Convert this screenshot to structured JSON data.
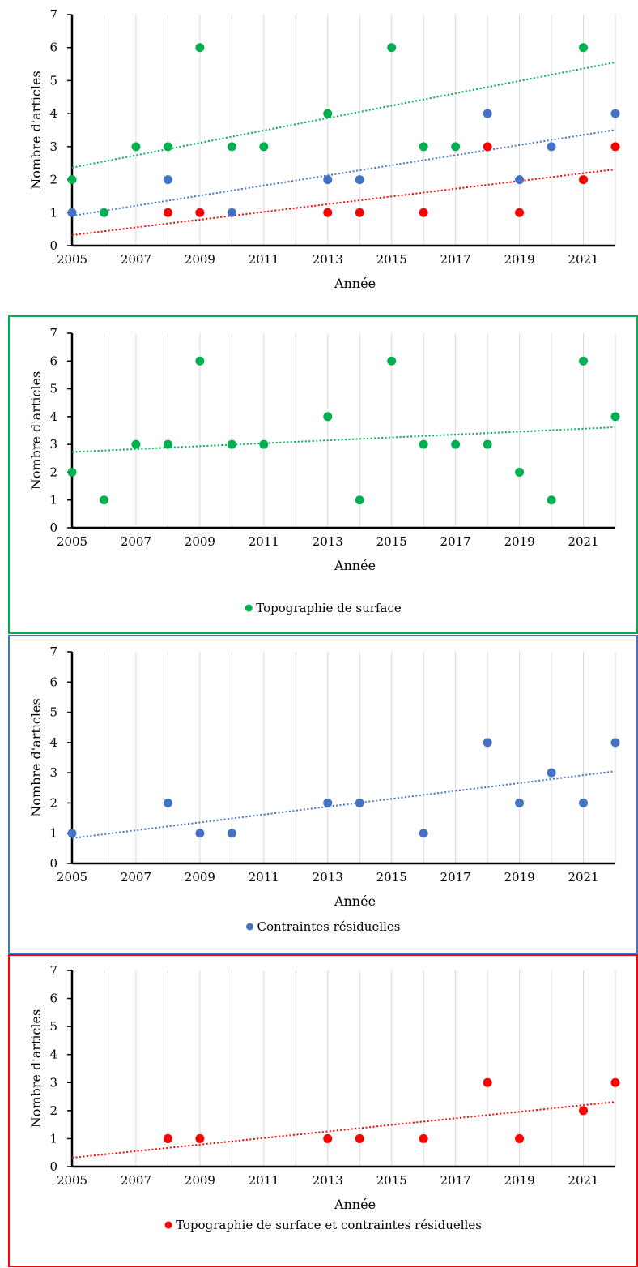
{
  "chart_data": [
    {
      "type": "scatter",
      "xlabel": "Année",
      "ylabel": "Nombre d'articles",
      "xlim": [
        2005,
        2022
      ],
      "ylim": [
        0,
        7
      ],
      "x_ticks": [
        2005,
        2007,
        2009,
        2011,
        2013,
        2015,
        2017,
        2019,
        2021
      ],
      "y_ticks": [
        0,
        1,
        2,
        3,
        4,
        5,
        6,
        7
      ],
      "grid": "vertical",
      "legend": null,
      "trendline": "linear, dotted",
      "series": [
        {
          "color": "#00b050",
          "x": [
            2005,
            2006,
            2007,
            2008,
            2009,
            2010,
            2011,
            2013,
            2015,
            2016,
            2017,
            2021
          ],
          "y": [
            2,
            1,
            3,
            3,
            6,
            3,
            3,
            4,
            6,
            3,
            3,
            6
          ]
        },
        {
          "color": "#4472c4",
          "x": [
            2005,
            2008,
            2010,
            2013,
            2014,
            2018,
            2019,
            2020,
            2022
          ],
          "y": [
            1,
            2,
            1,
            2,
            2,
            4,
            2,
            3,
            4
          ]
        },
        {
          "color": "#ff0000",
          "x": [
            2008,
            2009,
            2013,
            2014,
            2016,
            2018,
            2019,
            2021,
            2022
          ],
          "y": [
            1,
            1,
            1,
            1,
            1,
            3,
            1,
            2,
            3
          ]
        }
      ]
    },
    {
      "type": "scatter",
      "xlabel": "Année",
      "ylabel": "Nombre d'articles",
      "xlim": [
        2005,
        2022
      ],
      "ylim": [
        0,
        7
      ],
      "x_ticks": [
        2005,
        2007,
        2009,
        2011,
        2013,
        2015,
        2017,
        2019,
        2021
      ],
      "y_ticks": [
        0,
        1,
        2,
        3,
        4,
        5,
        6,
        7
      ],
      "grid": "vertical",
      "legend": "bottom",
      "frame_color": "#00b050",
      "trendline": "linear, dotted",
      "series": [
        {
          "name": "Topographie de surface",
          "color": "#00b050",
          "x": [
            2005,
            2006,
            2007,
            2008,
            2009,
            2010,
            2011,
            2013,
            2014,
            2015,
            2016,
            2017,
            2018,
            2019,
            2020,
            2021,
            2022
          ],
          "y": [
            2,
            1,
            3,
            3,
            6,
            3,
            3,
            4,
            1,
            6,
            3,
            3,
            3,
            2,
            1,
            6,
            4
          ]
        }
      ]
    },
    {
      "type": "scatter",
      "xlabel": "Année",
      "ylabel": "Nombre d'articles",
      "xlim": [
        2005,
        2022
      ],
      "ylim": [
        0,
        7
      ],
      "x_ticks": [
        2005,
        2007,
        2009,
        2011,
        2013,
        2015,
        2017,
        2019,
        2021
      ],
      "y_ticks": [
        0,
        1,
        2,
        3,
        4,
        5,
        6,
        7
      ],
      "grid": "vertical",
      "legend": "bottom",
      "frame_color": "#4472c4",
      "trendline": "linear, dotted",
      "series": [
        {
          "name": "Contraintes résiduelles",
          "color": "#4472c4",
          "x": [
            2005,
            2008,
            2009,
            2010,
            2013,
            2014,
            2016,
            2018,
            2019,
            2020,
            2021,
            2022
          ],
          "y": [
            1,
            2,
            1,
            1,
            2,
            2,
            1,
            4,
            2,
            3,
            2,
            4
          ]
        }
      ]
    },
    {
      "type": "scatter",
      "xlabel": "Année",
      "ylabel": "Nombre d'articles",
      "xlim": [
        2005,
        2022
      ],
      "ylim": [
        0,
        7
      ],
      "x_ticks": [
        2005,
        2007,
        2009,
        2011,
        2013,
        2015,
        2017,
        2019,
        2021
      ],
      "y_ticks": [
        0,
        1,
        2,
        3,
        4,
        5,
        6,
        7
      ],
      "grid": "vertical",
      "legend": "bottom",
      "frame_color": "#ff0000",
      "trendline": "linear, dotted",
      "series": [
        {
          "name": "Topographie de surface et contraintes résiduelles",
          "color": "#ff0000",
          "x": [
            2008,
            2009,
            2013,
            2014,
            2016,
            2018,
            2019,
            2021,
            2022
          ],
          "y": [
            1,
            1,
            1,
            1,
            1,
            3,
            1,
            2,
            3
          ]
        }
      ]
    }
  ]
}
